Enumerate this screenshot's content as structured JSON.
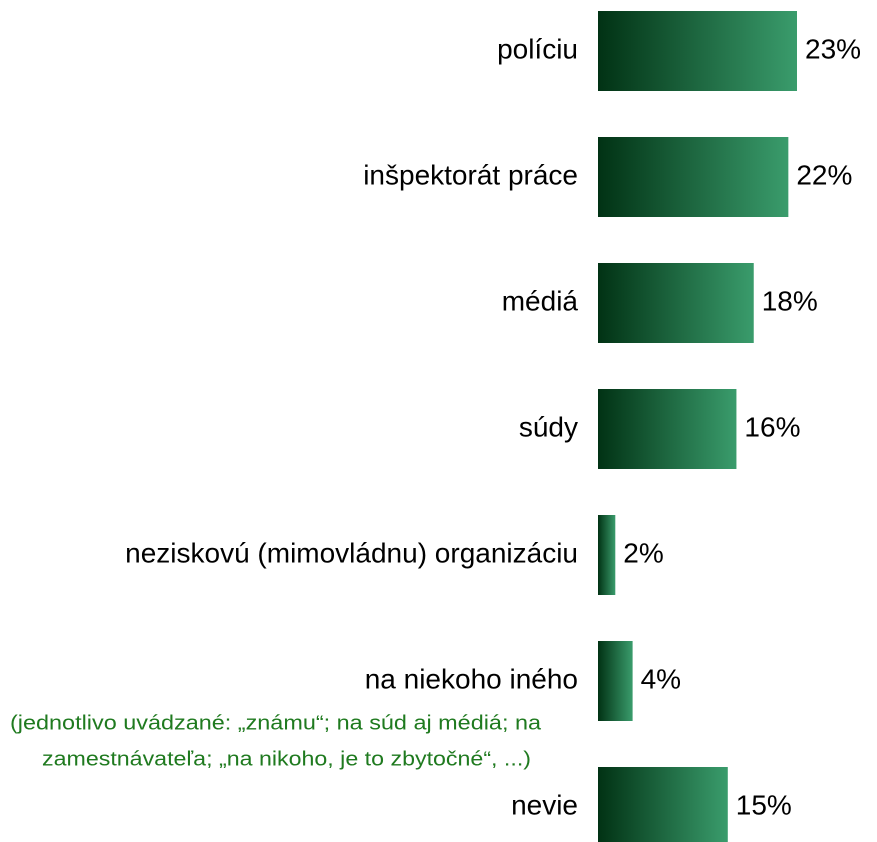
{
  "chart_data": {
    "type": "bar",
    "orientation": "horizontal",
    "categories": [
      "políciu",
      "inšpektorát práce",
      "médiá",
      "súdy",
      "neziskovú (mimovládnu) organizáciu",
      "na niekoho iného",
      "nevie"
    ],
    "values": [
      23,
      22,
      18,
      16,
      2,
      4,
      15
    ],
    "value_labels": [
      "23%",
      "22%",
      "18%",
      "16%",
      "2%",
      "4%",
      "15%"
    ],
    "colors": [
      "#013214",
      "#3a9c6c"
    ],
    "annotation": [
      "(jednotlivo uvádzané: „známu“; na súd aj médiá; na",
      "zamestnávateľa; „na nikoho, je to zbytočné“, ...)"
    ],
    "annotation_color": "#1f7a1f"
  }
}
